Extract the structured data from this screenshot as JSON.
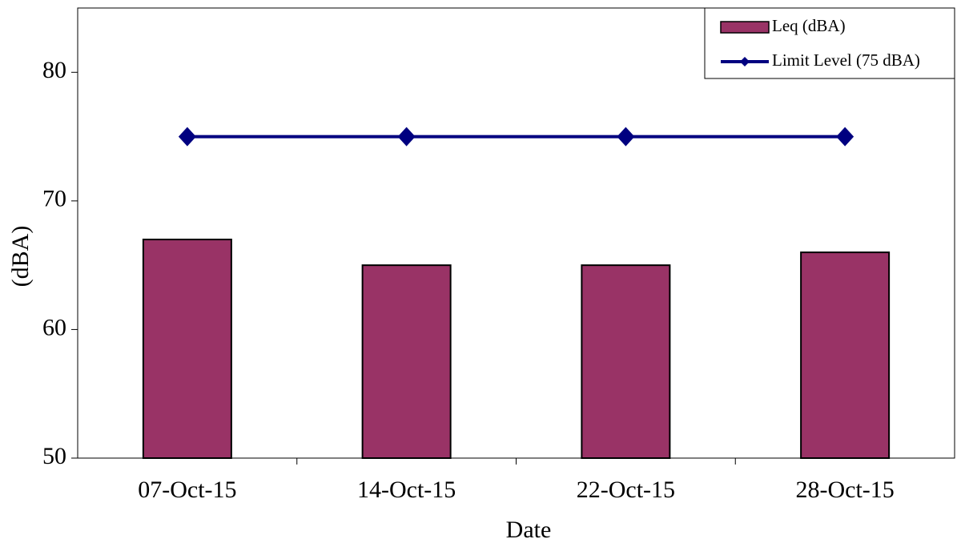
{
  "chart_data": {
    "type": "bar",
    "x_label": "Date",
    "y_label": "(dBA)",
    "categories": [
      "07-Oct-15",
      "14-Oct-15",
      "22-Oct-15",
      "28-Oct-15"
    ],
    "series": [
      {
        "name": "Leq (dBA)",
        "type": "bar",
        "color": "#993366",
        "values": [
          67,
          65,
          65,
          66
        ]
      },
      {
        "name": "Limit Level (75 dBA)",
        "type": "line",
        "color": "#000080",
        "values": [
          75,
          75,
          75,
          75
        ]
      }
    ],
    "ylim": [
      50,
      85
    ],
    "yticks": [
      50,
      60,
      70,
      80
    ],
    "grid": false,
    "legend": "top-right"
  }
}
